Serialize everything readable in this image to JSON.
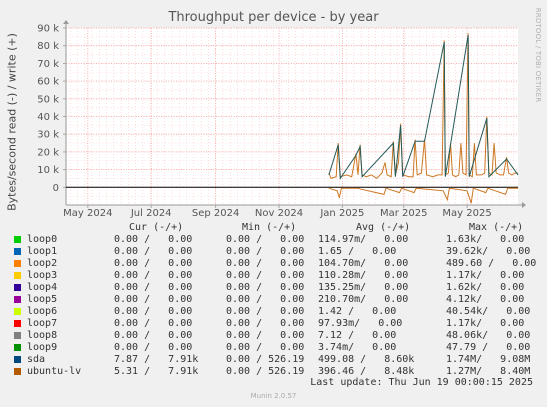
{
  "chart_data": {
    "type": "line",
    "title": "Throughput per device - by year",
    "ylabel": "Bytes/second read (-) / write (+)",
    "ylim": [
      -10000,
      90000
    ],
    "y_ticks": [
      0,
      10000,
      20000,
      30000,
      40000,
      50000,
      60000,
      70000,
      80000,
      90000
    ],
    "y_tick_labels": [
      "0",
      "10 k",
      "20 k",
      "30 k",
      "40 k",
      "50 k",
      "60 k",
      "70 k",
      "80 k",
      "90 k"
    ],
    "xlim": [
      "2024-04-10",
      "2025-06-19"
    ],
    "x_ticks": [
      "2024-05-01",
      "2024-07-01",
      "2024-09-01",
      "2024-11-01",
      "2025-01-01",
      "2025-03-01",
      "2025-05-01"
    ],
    "x_tick_labels": [
      "May 2024",
      "Jul 2024",
      "Sep 2024",
      "Nov 2024",
      "Jan 2025",
      "Mar 2025",
      "May 2025"
    ],
    "grid": true,
    "series": [
      {
        "name": "ubuntu-lv",
        "color": "#cc7722",
        "points": [
          [
            "2024-12-19",
            8000
          ],
          [
            "2024-12-21",
            5000
          ],
          [
            "2024-12-26",
            6000
          ],
          [
            "2024-12-28",
            25000
          ],
          [
            "2024-12-30",
            6000
          ],
          [
            "2025-01-05",
            7000
          ],
          [
            "2025-01-10",
            6000
          ],
          [
            "2025-01-14",
            19000
          ],
          [
            "2025-01-16",
            7000
          ],
          [
            "2025-01-18",
            24000
          ],
          [
            "2025-01-20",
            7000
          ],
          [
            "2025-01-24",
            6000
          ],
          [
            "2025-01-29",
            7000
          ],
          [
            "2025-02-03",
            5000
          ],
          [
            "2025-02-08",
            8000
          ],
          [
            "2025-02-11",
            14000
          ],
          [
            "2025-02-13",
            7000
          ],
          [
            "2025-02-17",
            6000
          ],
          [
            "2025-02-19",
            26000
          ],
          [
            "2025-02-21",
            7000
          ],
          [
            "2025-02-24",
            14000
          ],
          [
            "2025-02-26",
            36000
          ],
          [
            "2025-02-28",
            7000
          ],
          [
            "2025-03-06",
            6000
          ],
          [
            "2025-03-10",
            6000
          ],
          [
            "2025-03-12",
            27000
          ],
          [
            "2025-03-14",
            7000
          ],
          [
            "2025-03-18",
            8000
          ],
          [
            "2025-03-21",
            27000
          ],
          [
            "2025-03-23",
            7000
          ],
          [
            "2025-03-29",
            6000
          ],
          [
            "2025-04-03",
            7000
          ],
          [
            "2025-04-07",
            7000
          ],
          [
            "2025-04-09",
            83000
          ],
          [
            "2025-04-10",
            7000
          ],
          [
            "2025-04-13",
            8000
          ],
          [
            "2025-04-15",
            25000
          ],
          [
            "2025-04-17",
            7000
          ],
          [
            "2025-04-20",
            6000
          ],
          [
            "2025-04-23",
            7000
          ],
          [
            "2025-04-25",
            25000
          ],
          [
            "2025-04-27",
            8000
          ],
          [
            "2025-04-30",
            7000
          ],
          [
            "2025-05-02",
            87000
          ],
          [
            "2025-05-03",
            7000
          ],
          [
            "2025-05-06",
            6000
          ],
          [
            "2025-05-08",
            25000
          ],
          [
            "2025-05-10",
            7000
          ],
          [
            "2025-05-15",
            7000
          ],
          [
            "2025-05-18",
            8000
          ],
          [
            "2025-05-20",
            40000
          ],
          [
            "2025-05-22",
            8000
          ],
          [
            "2025-05-25",
            7000
          ],
          [
            "2025-05-27",
            25000
          ],
          [
            "2025-05-29",
            8000
          ],
          [
            "2025-06-02",
            7000
          ],
          [
            "2025-06-05",
            7000
          ],
          [
            "2025-06-08",
            17000
          ],
          [
            "2025-06-10",
            8000
          ],
          [
            "2025-06-13",
            7000
          ],
          [
            "2025-06-16",
            8000
          ],
          [
            "2025-06-19",
            8000
          ]
        ]
      },
      {
        "name": "sda",
        "color": "#235a5a",
        "points": [
          [
            "2024-12-19",
            7000
          ],
          [
            "2024-12-28",
            24000
          ],
          [
            "2024-12-30",
            5000
          ],
          [
            "2025-01-14",
            18000
          ],
          [
            "2025-01-18",
            23000
          ],
          [
            "2025-01-20",
            6000
          ],
          [
            "2025-02-19",
            25000
          ],
          [
            "2025-02-21",
            6000
          ],
          [
            "2025-02-26",
            35000
          ],
          [
            "2025-02-28",
            6000
          ],
          [
            "2025-03-12",
            26000
          ],
          [
            "2025-03-21",
            26000
          ],
          [
            "2025-04-09",
            82000
          ],
          [
            "2025-04-10",
            6000
          ],
          [
            "2025-04-15",
            24000
          ],
          [
            "2025-05-02",
            86000
          ],
          [
            "2025-05-03",
            6000
          ],
          [
            "2025-05-20",
            39000
          ],
          [
            "2025-05-22",
            6000
          ],
          [
            "2025-06-08",
            16000
          ],
          [
            "2025-06-19",
            7000
          ]
        ]
      },
      {
        "name": "ubuntu-lv (read)",
        "color": "#cc7722",
        "points": [
          [
            "2024-12-19",
            -500
          ],
          [
            "2024-12-27",
            -2000
          ],
          [
            "2024-12-29",
            -6000
          ],
          [
            "2024-12-31",
            -500
          ],
          [
            "2025-01-15",
            -500
          ],
          [
            "2025-02-10",
            -4000
          ],
          [
            "2025-02-12",
            -500
          ],
          [
            "2025-02-25",
            -3000
          ],
          [
            "2025-02-27",
            -500
          ],
          [
            "2025-03-11",
            -3000
          ],
          [
            "2025-03-13",
            -500
          ],
          [
            "2025-04-08",
            -2000
          ],
          [
            "2025-04-12",
            -7000
          ],
          [
            "2025-04-14",
            -500
          ],
          [
            "2025-05-01",
            -2000
          ],
          [
            "2025-05-05",
            -9000
          ],
          [
            "2025-05-07",
            -500
          ],
          [
            "2025-05-19",
            -3000
          ],
          [
            "2025-05-21",
            -500
          ],
          [
            "2025-06-07",
            -4000
          ],
          [
            "2025-06-09",
            -500
          ],
          [
            "2025-06-19",
            -500
          ]
        ]
      }
    ],
    "flat_series_value": 0,
    "flat_series_color": "#000000"
  },
  "legend": {
    "header": {
      "cur": "Cur (-/+)",
      "min": "Min (-/+)",
      "avg": "Avg (-/+)",
      "max": "Max (-/+)"
    },
    "rows": [
      {
        "name": "loop0",
        "color": "#00cc00",
        "cur": "0.00 /   0.00",
        "min": "0.00 /   0.00",
        "avg": "114.97m/   0.00",
        "max": "1.63k/   0.00"
      },
      {
        "name": "loop1",
        "color": "#0066b3",
        "cur": "0.00 /   0.00",
        "min": "0.00 /   0.00",
        "avg": "1.65 /   0.00",
        "max": "39.62k/   0.00"
      },
      {
        "name": "loop2",
        "color": "#ff8000",
        "cur": "0.00 /   0.00",
        "min": "0.00 /   0.00",
        "avg": "104.70m/   0.00",
        "max": "489.60 /   0.00"
      },
      {
        "name": "loop3",
        "color": "#ffcc00",
        "cur": "0.00 /   0.00",
        "min": "0.00 /   0.00",
        "avg": "110.28m/   0.00",
        "max": "1.17k/   0.00"
      },
      {
        "name": "loop4",
        "color": "#330099",
        "cur": "0.00 /   0.00",
        "min": "0.00 /   0.00",
        "avg": "135.25m/   0.00",
        "max": "1.62k/   0.00"
      },
      {
        "name": "loop5",
        "color": "#990099",
        "cur": "0.00 /   0.00",
        "min": "0.00 /   0.00",
        "avg": "210.70m/   0.00",
        "max": "4.12k/   0.00"
      },
      {
        "name": "loop6",
        "color": "#ccff00",
        "cur": "0.00 /   0.00",
        "min": "0.00 /   0.00",
        "avg": "1.42 /   0.00",
        "max": "40.54k/   0.00"
      },
      {
        "name": "loop7",
        "color": "#ff0000",
        "cur": "0.00 /   0.00",
        "min": "0.00 /   0.00",
        "avg": "97.93m/   0.00",
        "max": "1.17k/   0.00"
      },
      {
        "name": "loop8",
        "color": "#808080",
        "cur": "0.00 /   0.00",
        "min": "0.00 /   0.00",
        "avg": "7.12 /   0.00",
        "max": "48.06k/   0.00"
      },
      {
        "name": "loop9",
        "color": "#008f00",
        "cur": "0.00 /   0.00",
        "min": "0.00 /   0.00",
        "avg": "3.74m/   0.00",
        "max": "47.79 /   0.00"
      },
      {
        "name": "sda",
        "color": "#00487d",
        "cur": "7.87 /   7.91k",
        "min": "0.00 / 526.19",
        "avg": "499.08 /   8.60k",
        "max": "1.74M/   9.08M"
      },
      {
        "name": "ubuntu-lv",
        "color": "#b35a00",
        "cur": "5.31 /   7.91k",
        "min": "0.00 / 526.19",
        "avg": "396.46 /   8.48k",
        "max": "1.27M/   8.40M"
      }
    ]
  },
  "last_update": "Last update: Thu Jun 19 00:00:15 2025",
  "watermark": "RRDTOOL / TOBI OETIKER",
  "generator": "Munin 2.0.57"
}
